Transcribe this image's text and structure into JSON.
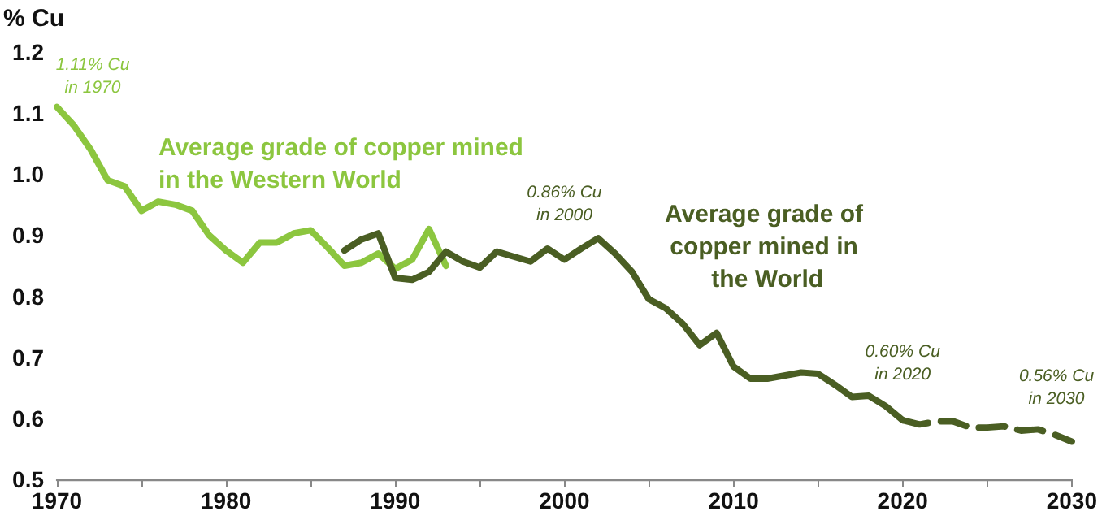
{
  "chart_data": {
    "type": "line",
    "ylabel": "% Cu",
    "xlim": [
      1970,
      2030
    ],
    "xticks": [
      1970,
      {
        "value": 1975,
        "label": null
      },
      1980,
      {
        "value": 1985,
        "label": null
      },
      1990,
      {
        "value": 1995,
        "label": null
      },
      2000,
      {
        "value": 2005,
        "label": null
      },
      2010,
      {
        "value": 2015,
        "label": null
      },
      2020,
      {
        "value": 2025,
        "label": null
      },
      2030
    ],
    "ylim": [
      0.5,
      1.2
    ],
    "yticks": [
      0.5,
      0.6,
      0.7,
      0.8,
      0.9,
      {
        "value": 1.0,
        "label": "1.0"
      },
      1.1,
      1.2
    ],
    "grid": false,
    "legend": false,
    "marker": "none",
    "series": [
      {
        "name": "Average grade of copper mined in the Western World",
        "color": "#8cc63f",
        "line_style": "solid",
        "x": [
          1970,
          1971,
          1972,
          1973,
          1974,
          1975,
          1976,
          1977,
          1978,
          1979,
          1980,
          1981,
          1982,
          1983,
          1984,
          1985,
          1986,
          1987,
          1988,
          1989,
          1990,
          1991,
          1992,
          1993
        ],
        "values": [
          1.11,
          1.08,
          1.04,
          0.99,
          0.98,
          0.94,
          0.955,
          0.95,
          0.94,
          0.9,
          0.875,
          0.855,
          0.888,
          0.888,
          0.903,
          0.908,
          0.88,
          0.85,
          0.855,
          0.87,
          0.845,
          0.86,
          0.91,
          0.85
        ]
      },
      {
        "name": "Average grade of copper mined in the World",
        "color": "#4a5e23",
        "line_style": "solid",
        "x": [
          1987,
          1988,
          1989,
          1990,
          1991,
          1992,
          1993,
          1994,
          1995,
          1996,
          1997,
          1998,
          1999,
          2000,
          2001,
          2002,
          2003,
          2004,
          2005,
          2006,
          2007,
          2008,
          2009,
          2010,
          2011,
          2012,
          2013,
          2014,
          2015,
          2016,
          2017,
          2018,
          2019,
          2020
        ],
        "values": [
          0.875,
          0.893,
          0.903,
          0.83,
          0.827,
          0.84,
          0.873,
          0.857,
          0.847,
          0.873,
          0.865,
          0.857,
          0.878,
          0.86,
          0.878,
          0.895,
          0.87,
          0.84,
          0.795,
          0.78,
          0.755,
          0.72,
          0.74,
          0.685,
          0.665,
          0.665,
          0.67,
          0.675,
          0.673,
          0.655,
          0.635,
          0.637,
          0.62,
          0.597
        ]
      },
      {
        "color": "#4a5e23",
        "line_style": "dashed",
        "x": [
          2020,
          2021,
          2022,
          2023,
          2024,
          2025,
          2026,
          2027,
          2028,
          2029,
          2030
        ],
        "values": [
          0.597,
          0.59,
          0.595,
          0.595,
          0.585,
          0.585,
          0.587,
          0.58,
          0.582,
          0.573,
          0.562
        ]
      }
    ],
    "annotations": [
      {
        "text": "1.11% Cu\nin 1970",
        "x": 1970,
        "y": 1.11
      },
      {
        "text": "0.86% Cu\nin 2000",
        "x": 2000,
        "y": 0.86
      },
      {
        "text": "0.60% Cu\nin 2020",
        "x": 2020,
        "y": 0.6
      },
      {
        "text": "0.56% Cu\nin 2030",
        "x": 2030,
        "y": 0.56
      }
    ]
  }
}
